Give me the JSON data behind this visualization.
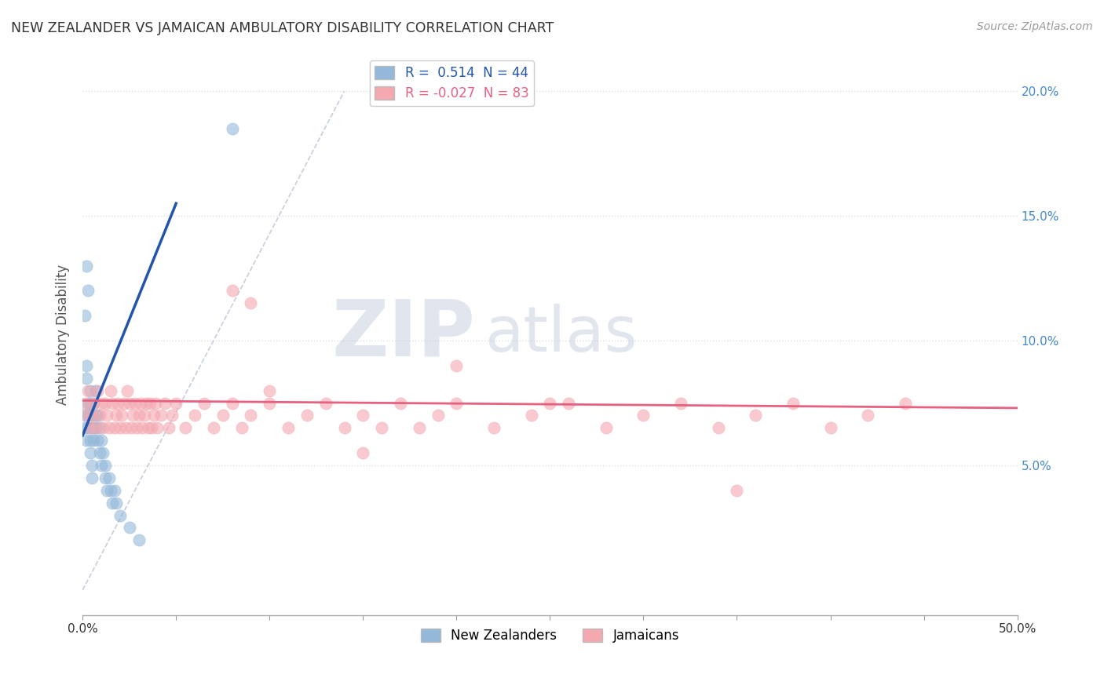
{
  "title": "NEW ZEALANDER VS JAMAICAN AMBULATORY DISABILITY CORRELATION CHART",
  "source": "Source: ZipAtlas.com",
  "ylabel": "Ambulatory Disability",
  "xlim": [
    0.0,
    0.5
  ],
  "ylim": [
    -0.01,
    0.215
  ],
  "yticks": [
    0.05,
    0.1,
    0.15,
    0.2
  ],
  "ytick_labels_right": [
    "5.0%",
    "10.0%",
    "15.0%",
    "20.0%"
  ],
  "xtick_left_label": "0.0%",
  "xtick_right_label": "50.0%",
  "nz_R": 0.514,
  "nz_N": 44,
  "jam_R": -0.027,
  "jam_N": 83,
  "nz_color": "#94B8D9",
  "jam_color": "#F4A8B0",
  "nz_line_color": "#2255AA",
  "jam_line_color": "#E86080",
  "background_color": "#FFFFFF",
  "grid_color": "#DDDDDD",
  "watermark_zip": "ZIP",
  "watermark_atlas": "atlas",
  "watermark_color": "#C8D0E0",
  "nz_scatter_x": [
    0.001,
    0.001,
    0.002,
    0.002,
    0.002,
    0.003,
    0.003,
    0.003,
    0.004,
    0.004,
    0.004,
    0.004,
    0.005,
    0.005,
    0.005,
    0.005,
    0.006,
    0.006,
    0.006,
    0.007,
    0.007,
    0.007,
    0.008,
    0.008,
    0.009,
    0.009,
    0.01,
    0.01,
    0.011,
    0.012,
    0.012,
    0.013,
    0.014,
    0.015,
    0.016,
    0.017,
    0.018,
    0.02,
    0.025,
    0.03,
    0.001,
    0.002,
    0.003,
    0.08
  ],
  "nz_scatter_y": [
    0.07,
    0.065,
    0.09,
    0.085,
    0.06,
    0.075,
    0.07,
    0.065,
    0.08,
    0.075,
    0.06,
    0.055,
    0.07,
    0.065,
    0.05,
    0.045,
    0.075,
    0.065,
    0.06,
    0.07,
    0.065,
    0.08,
    0.07,
    0.06,
    0.065,
    0.055,
    0.06,
    0.05,
    0.055,
    0.05,
    0.045,
    0.04,
    0.045,
    0.04,
    0.035,
    0.04,
    0.035,
    0.03,
    0.025,
    0.02,
    0.11,
    0.13,
    0.12,
    0.185
  ],
  "jam_scatter_x": [
    0.001,
    0.002,
    0.003,
    0.004,
    0.005,
    0.006,
    0.007,
    0.008,
    0.009,
    0.01,
    0.011,
    0.012,
    0.013,
    0.014,
    0.015,
    0.016,
    0.017,
    0.018,
    0.019,
    0.02,
    0.021,
    0.022,
    0.023,
    0.024,
    0.025,
    0.026,
    0.027,
    0.028,
    0.029,
    0.03,
    0.031,
    0.032,
    0.033,
    0.034,
    0.035,
    0.036,
    0.037,
    0.038,
    0.039,
    0.04,
    0.042,
    0.044,
    0.046,
    0.048,
    0.05,
    0.055,
    0.06,
    0.065,
    0.07,
    0.075,
    0.08,
    0.085,
    0.09,
    0.1,
    0.11,
    0.12,
    0.13,
    0.14,
    0.15,
    0.16,
    0.17,
    0.18,
    0.19,
    0.2,
    0.22,
    0.24,
    0.26,
    0.28,
    0.3,
    0.32,
    0.34,
    0.36,
    0.38,
    0.4,
    0.42,
    0.44,
    0.08,
    0.09,
    0.35,
    0.25,
    0.15,
    0.1,
    0.2
  ],
  "jam_scatter_y": [
    0.075,
    0.07,
    0.08,
    0.065,
    0.07,
    0.075,
    0.065,
    0.08,
    0.07,
    0.075,
    0.065,
    0.075,
    0.07,
    0.065,
    0.08,
    0.075,
    0.065,
    0.07,
    0.075,
    0.065,
    0.07,
    0.075,
    0.065,
    0.08,
    0.075,
    0.065,
    0.07,
    0.075,
    0.065,
    0.07,
    0.075,
    0.065,
    0.07,
    0.075,
    0.065,
    0.075,
    0.065,
    0.07,
    0.075,
    0.065,
    0.07,
    0.075,
    0.065,
    0.07,
    0.075,
    0.065,
    0.07,
    0.075,
    0.065,
    0.07,
    0.075,
    0.065,
    0.07,
    0.075,
    0.065,
    0.07,
    0.075,
    0.065,
    0.07,
    0.065,
    0.075,
    0.065,
    0.07,
    0.075,
    0.065,
    0.07,
    0.075,
    0.065,
    0.07,
    0.075,
    0.065,
    0.07,
    0.075,
    0.065,
    0.07,
    0.075,
    0.12,
    0.115,
    0.04,
    0.075,
    0.055,
    0.08,
    0.09
  ]
}
